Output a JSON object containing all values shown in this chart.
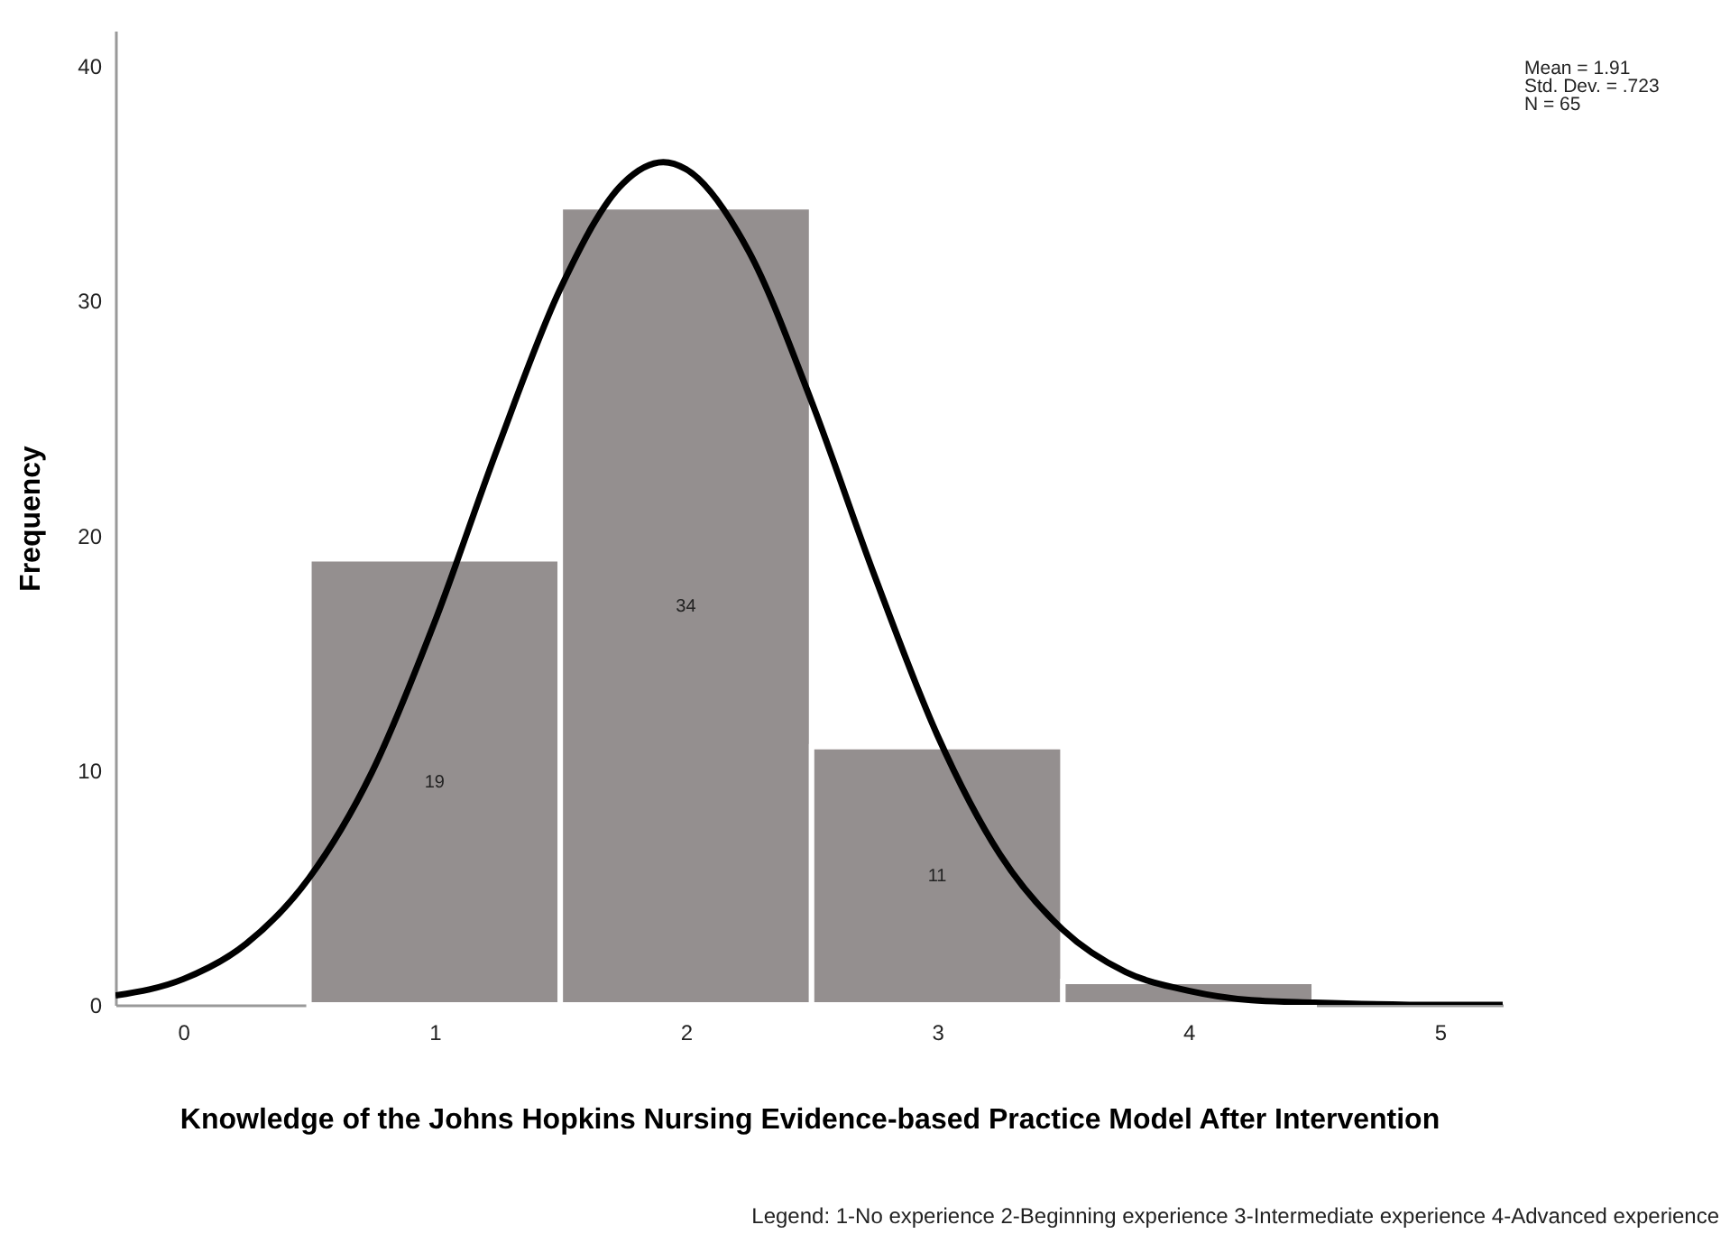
{
  "chart_data": {
    "type": "histogram",
    "xlabel": "Knowledge of the Johns Hopkins Nursing Evidence-based Practice Model After Intervention",
    "ylabel": "Frequency",
    "annotations": [
      "Mean = 1.91",
      "Std. Dev. = .723",
      "N = 65",
      "Legend: 1-No experience 2-Beginning experience 3-Intermediate experience 4-Advanced experience"
    ],
    "bins": [
      0.5,
      1.5,
      2.5,
      3.5,
      4.5
    ],
    "series": [
      {
        "color": "#948f8f",
        "values": [
          19,
          34,
          11,
          1
        ],
        "value_labels": [
          "19",
          "34",
          "11",
          null
        ]
      },
      {
        "type": "line",
        "color": "#000000",
        "x": [
          -0.27,
          0,
          0.25,
          0.5,
          0.75,
          1,
          1.25,
          1.5,
          1.75,
          1.91,
          2,
          2.25,
          2.5,
          2.75,
          3,
          3.25,
          3.5,
          3.75,
          4,
          4.25,
          4.5,
          5,
          5.25
        ],
        "values": [
          0.4,
          1.1,
          2.6,
          5.4,
          9.9,
          16.3,
          23.7,
          30.5,
          35.0,
          35.9,
          35.6,
          32.1,
          25.7,
          18.3,
          11.5,
          6.4,
          3.2,
          1.4,
          0.6,
          0.2,
          0.1,
          0,
          0
        ]
      }
    ],
    "xlim": [
      -0.27,
      5.25
    ],
    "xticks": [
      0,
      1,
      2,
      3,
      4,
      5
    ],
    "ylim": [
      0,
      41.5
    ],
    "yticks": [
      0,
      10,
      20,
      30,
      40
    ],
    "grid": false,
    "legend": false,
    "marker": "none",
    "line_style": "solid"
  }
}
